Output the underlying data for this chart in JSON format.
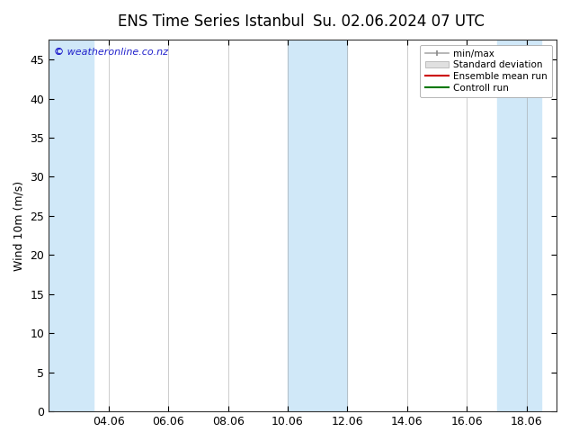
{
  "title_left": "ENS Time Series Istanbul",
  "title_right": "Su. 02.06.2024 07 UTC",
  "ylabel": "Wind 10m (m/s)",
  "ylim": [
    0,
    47.5
  ],
  "yticks": [
    0,
    5,
    10,
    15,
    20,
    25,
    30,
    35,
    40,
    45
  ],
  "xtick_labels": [
    "04.06",
    "06.06",
    "08.06",
    "10.06",
    "12.06",
    "14.06",
    "16.06",
    "18.06"
  ],
  "xtick_positions": [
    2,
    4,
    6,
    8,
    10,
    12,
    14,
    16
  ],
  "xlim": [
    0,
    17
  ],
  "watermark": "© weatheronline.co.nz",
  "watermark_color": "#2222cc",
  "bg_color": "#ffffff",
  "plot_bg_color": "#ffffff",
  "band_color": "#d0e8f8",
  "legend_items": [
    "min/max",
    "Standard deviation",
    "Ensemble mean run",
    "Controll run"
  ],
  "legend_colors_line": [
    "#aaaaaa",
    "#cccccc",
    "#cc0000",
    "#007700"
  ],
  "title_fontsize": 12,
  "axis_fontsize": 9,
  "tick_fontsize": 9,
  "band_ranges": [
    [
      0,
      1.5
    ],
    [
      8,
      10
    ],
    [
      15,
      16.5
    ]
  ]
}
